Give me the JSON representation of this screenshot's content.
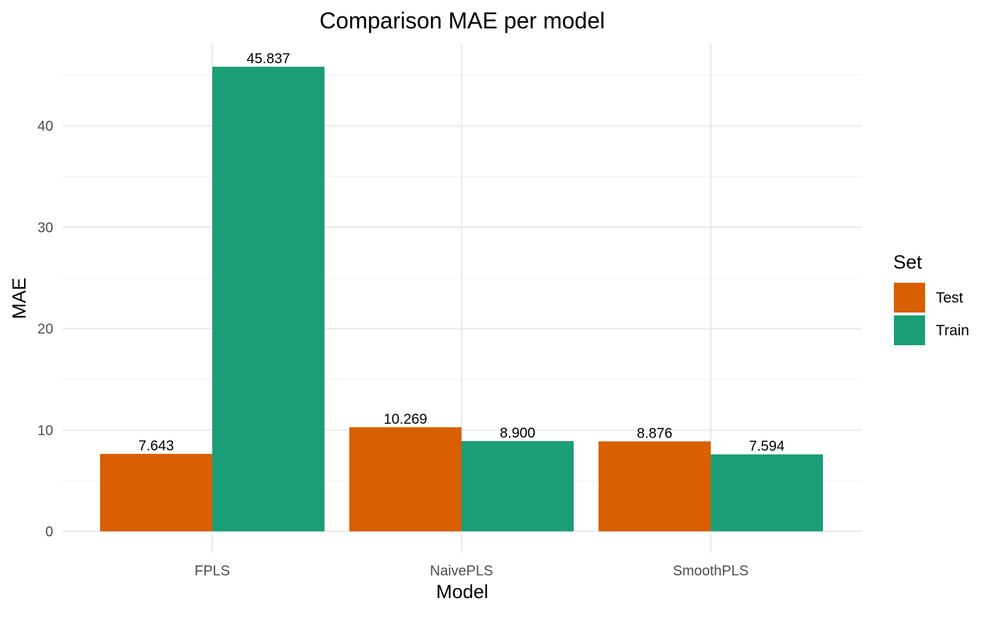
{
  "chart_data": {
    "type": "bar",
    "title": "Comparison MAE per model",
    "xlabel": "Model",
    "ylabel": "MAE",
    "categories": [
      "FPLS",
      "NaivePLS",
      "SmoothPLS"
    ],
    "series": [
      {
        "name": "Test",
        "color": "#d95f02",
        "values": [
          7.643,
          10.269,
          8.876
        ],
        "labels": [
          "7.643",
          "10.269",
          "8.876"
        ]
      },
      {
        "name": "Train",
        "color": "#1b9e77",
        "values": [
          45.837,
          8.9,
          7.594
        ],
        "labels": [
          "45.837",
          "8.900",
          "7.594"
        ]
      }
    ],
    "ylim": [
      0,
      47
    ],
    "yticks": [
      0,
      10,
      20,
      30,
      40
    ],
    "yticks_minor": [
      5,
      15,
      25,
      35,
      45
    ],
    "grid": true,
    "legend": {
      "title": "Set",
      "placement": "right"
    }
  }
}
